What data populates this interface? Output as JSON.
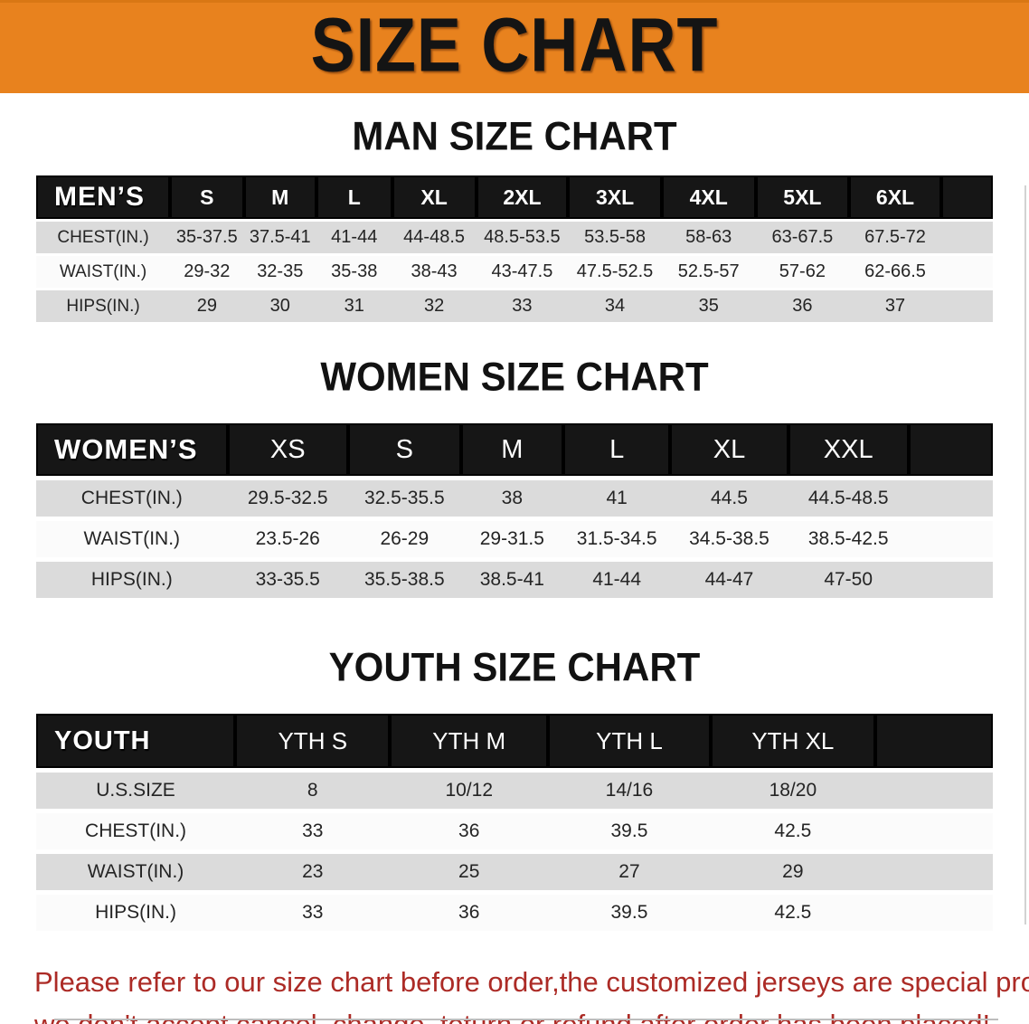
{
  "banner": {
    "title": "SIZE CHART",
    "bg_color": "#E8821E"
  },
  "sections": {
    "men": {
      "heading": "MAN SIZE CHART",
      "table": {
        "corner_label": "MEN’S",
        "columns": [
          "S",
          "M",
          "L",
          "XL",
          "2XL",
          "3XL",
          "4XL",
          "5XL",
          "6XL"
        ],
        "rows": [
          {
            "label": "CHEST(IN.)",
            "values": [
              "35-37.5",
              "37.5-41",
              "41-44",
              "44-48.5",
              "48.5-53.5",
              "53.5-58",
              "58-63",
              "63-67.5",
              "67.5-72"
            ]
          },
          {
            "label": "WAIST(IN.)",
            "values": [
              "29-32",
              "32-35",
              "35-38",
              "38-43",
              "43-47.5",
              "47.5-52.5",
              "52.5-57",
              "57-62",
              "62-66.5"
            ]
          },
          {
            "label": "HIPS(IN.)",
            "values": [
              "29",
              "30",
              "31",
              "32",
              "33",
              "34",
              "35",
              "36",
              "37"
            ]
          }
        ]
      }
    },
    "women": {
      "heading": "WOMEN SIZE CHART",
      "table": {
        "corner_label": "WOMEN’S",
        "columns": [
          "XS",
          "S",
          "M",
          "L",
          "XL",
          "XXL"
        ],
        "rows": [
          {
            "label": "CHEST(IN.)",
            "values": [
              "29.5-32.5",
              "32.5-35.5",
              "38",
              "41",
              "44.5",
              "44.5-48.5"
            ]
          },
          {
            "label": "WAIST(IN.)",
            "values": [
              "23.5-26",
              "26-29",
              "29-31.5",
              "31.5-34.5",
              "34.5-38.5",
              "38.5-42.5"
            ]
          },
          {
            "label": "HIPS(IN.)",
            "values": [
              "33-35.5",
              "35.5-38.5",
              "38.5-41",
              "41-44",
              "44-47",
              "47-50"
            ]
          }
        ]
      }
    },
    "youth": {
      "heading": "YOUTH SIZE CHART",
      "table": {
        "corner_label": "YOUTH",
        "columns": [
          "YTH S",
          "YTH M",
          "YTH L",
          "YTH XL"
        ],
        "rows": [
          {
            "label": "U.S.SIZE",
            "values": [
              "8",
              "10/12",
              "14/16",
              "18/20"
            ]
          },
          {
            "label": "CHEST(IN.)",
            "values": [
              "33",
              "36",
              "39.5",
              "42.5"
            ]
          },
          {
            "label": "WAIST(IN.)",
            "values": [
              "23",
              "25",
              "27",
              "29"
            ]
          },
          {
            "label": "HIPS(IN.)",
            "values": [
              "33",
              "36",
              "39.5",
              "42.5"
            ]
          }
        ]
      }
    }
  },
  "disclaimer": {
    "line1": "Please refer to our size chart before order,the customized jerseys are special products,",
    "line2": "we don't accept cancel, change, teturn or refund after order has been placed!",
    "color": "#AC2B26"
  },
  "colors": {
    "banner_orange": "#E8821E",
    "table_header_black": "#161616",
    "row_gray": "#DBDBDB",
    "row_white": "#FBFBFB",
    "disclaimer_red": "#AC2B26"
  }
}
